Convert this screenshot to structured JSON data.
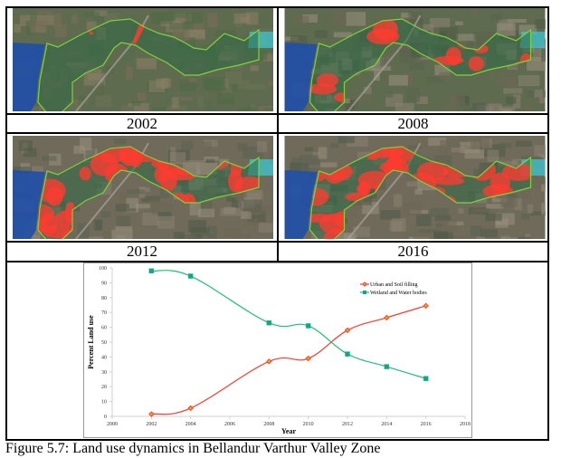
{
  "panels": [
    {
      "year": "2002",
      "urban_level": 0.02
    },
    {
      "year": "2008",
      "urban_level": 0.37
    },
    {
      "year": "2012",
      "urban_level": 0.58
    },
    {
      "year": "2016",
      "urban_level": 0.745
    }
  ],
  "colors": {
    "urban": "#ff3b30",
    "wetland": "#1fbf78",
    "wetland_marker": "#12a58a",
    "lake": "#1f4fa8",
    "inlet": "#3fc0c8",
    "boundary": "#7fd23a",
    "terrain": "#5e6a4c"
  },
  "caption": "Figure 5.7: Land use dynamics in Bellandur Varthur Valley Zone",
  "chart_data": {
    "type": "line",
    "title": "",
    "xlabel": "Year",
    "ylabel": "Percent Land use",
    "xlim": [
      2000,
      2018
    ],
    "ylim": [
      0,
      100
    ],
    "xticks": [
      "2000",
      "2002",
      "2004",
      "2006",
      "2008",
      "2010",
      "2012",
      "2014",
      "2016",
      "2018"
    ],
    "yticks": [
      "0",
      "10",
      "20",
      "30",
      "40",
      "50",
      "60",
      "70",
      "80",
      "90",
      "100"
    ],
    "grid": false,
    "legend_position": "top-right",
    "x": [
      2002,
      2004,
      2008,
      2010,
      2012,
      2014,
      2016
    ],
    "series": [
      {
        "name": "Urban and Soil filling",
        "color": "#ff3b30",
        "marker": "diamond",
        "values": [
          1.5,
          5.5,
          37,
          39,
          58,
          66.5,
          74.5
        ]
      },
      {
        "name": "Wetland and Water bodies",
        "color": "#1fbf78",
        "marker": "square",
        "values": [
          98,
          94.5,
          63,
          61,
          42,
          33.5,
          25.5
        ]
      }
    ]
  }
}
